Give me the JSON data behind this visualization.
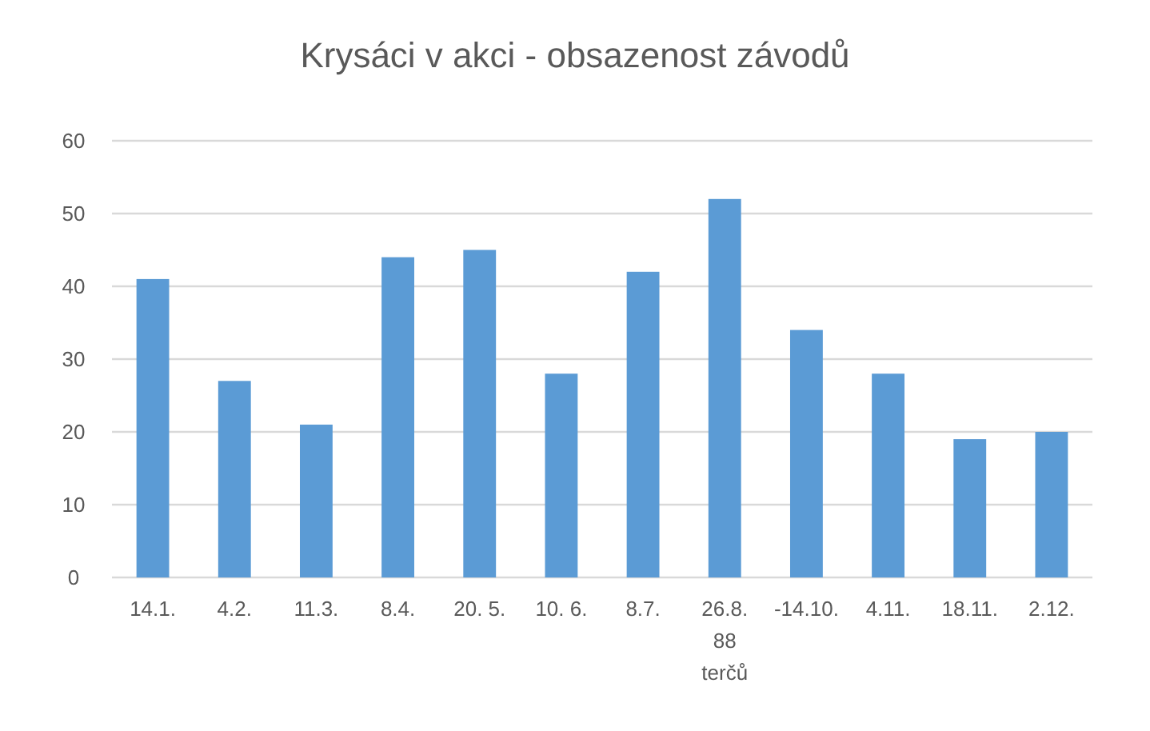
{
  "chart_data": {
    "type": "bar",
    "title": "Krysáci v akci  - obsazenost závodů",
    "categories": [
      "14.1.",
      "4.2.",
      "11.3.",
      "8.4.",
      "20. 5.",
      "10. 6.",
      "8.7.",
      "26.8. 88 terčů",
      "-14.10.",
      "4.11.",
      "18.11.",
      "2.12."
    ],
    "values": [
      41,
      27,
      21,
      44,
      45,
      28,
      42,
      52,
      34,
      28,
      19,
      20
    ],
    "color": "#5b9bd5",
    "ylim": [
      0,
      60
    ],
    "yticks": [
      0,
      10,
      20,
      30,
      40,
      50,
      60
    ],
    "grid": "y"
  }
}
